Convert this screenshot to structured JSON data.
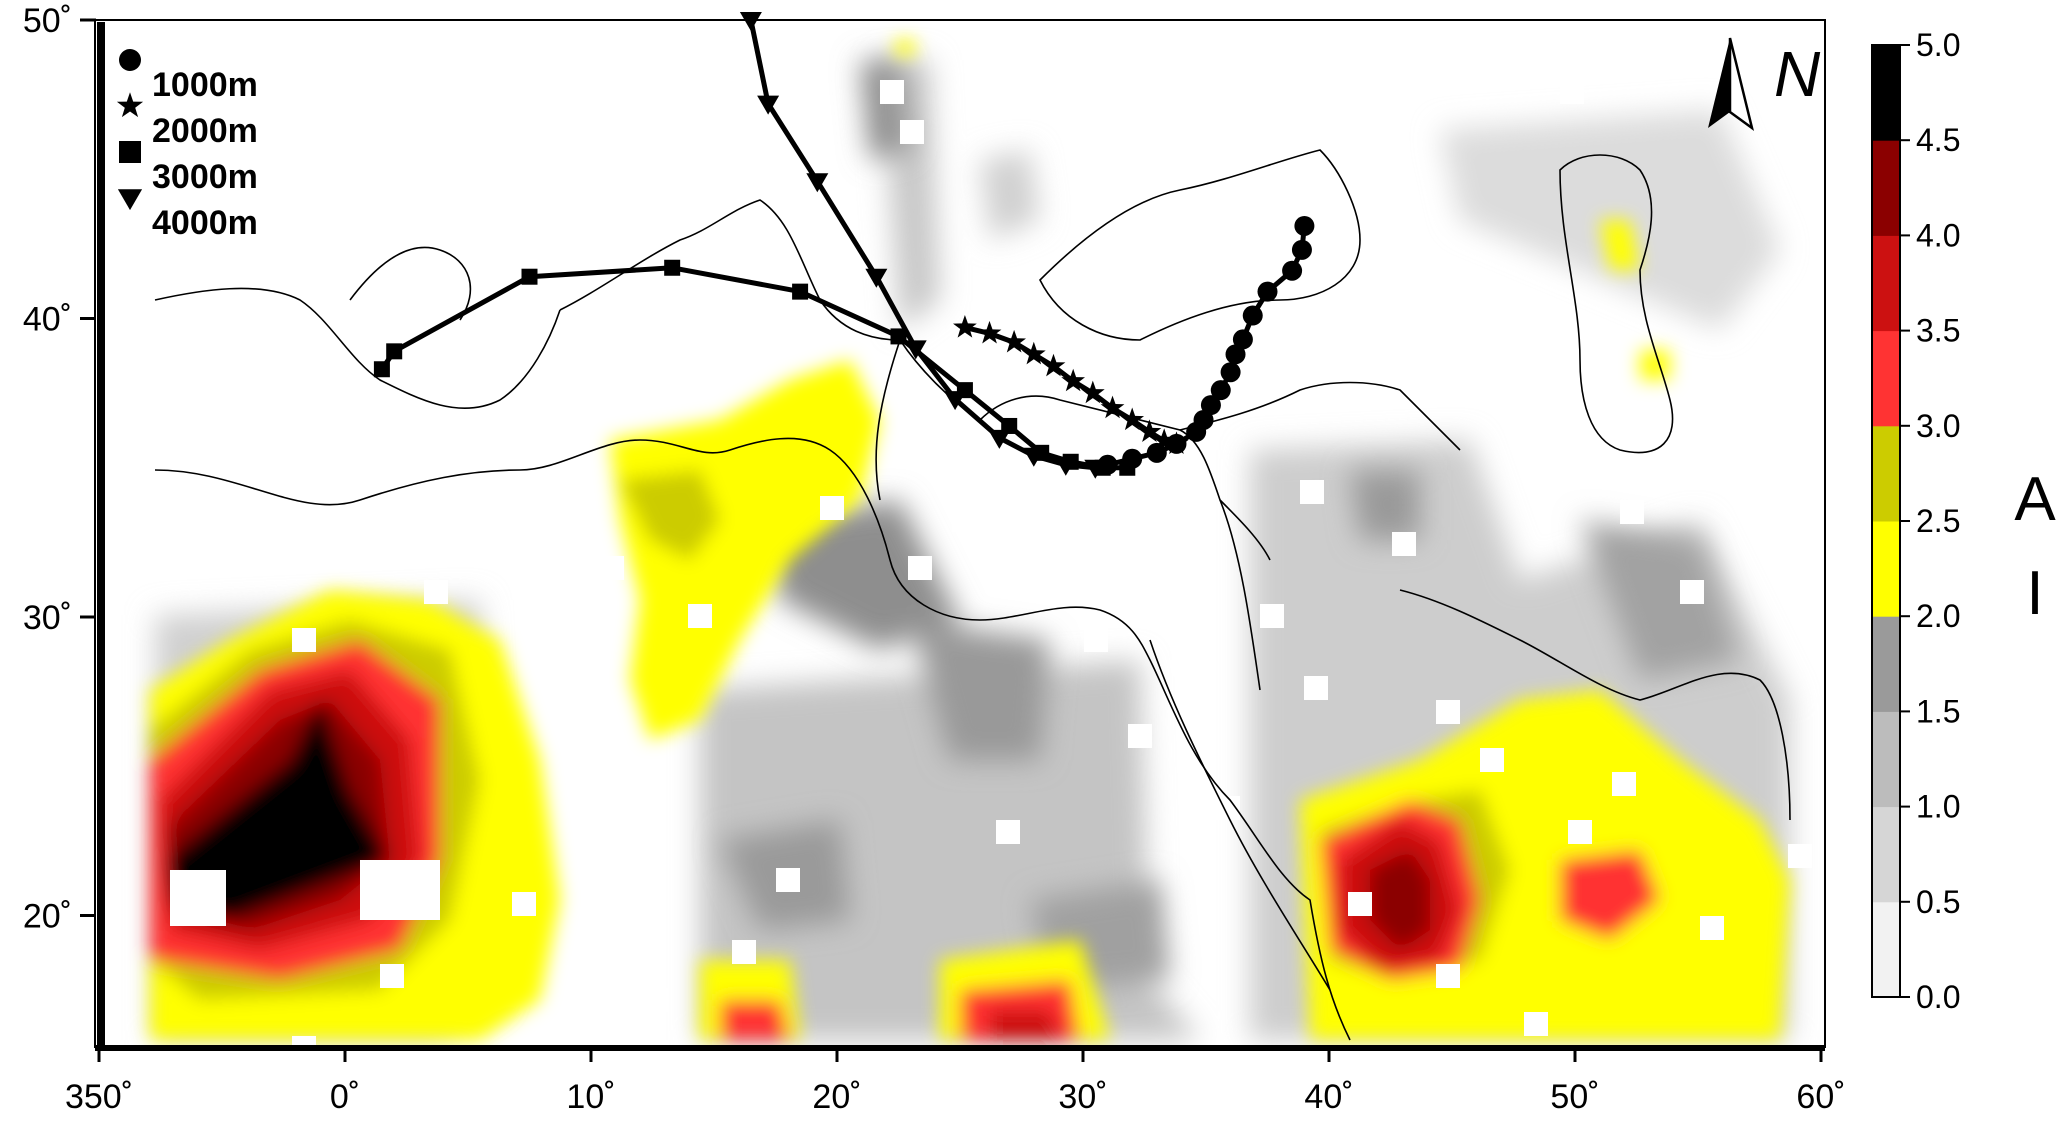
{
  "map": {
    "lon_ticks": [
      "350˚",
      "0˚",
      "10˚",
      "20˚",
      "30˚",
      "40˚",
      "50˚",
      "60˚"
    ],
    "lat_ticks": [
      "50˚",
      "40˚",
      "30˚",
      "20˚"
    ],
    "north_label": "N",
    "lon_range": [
      350,
      60
    ],
    "lat_range": [
      16.5,
      50
    ],
    "legend": [
      {
        "symbol": "circle",
        "label": "1000m"
      },
      {
        "symbol": "star",
        "label": "2000m"
      },
      {
        "symbol": "square",
        "label": "3000m"
      },
      {
        "symbol": "triangle-down",
        "label": "4000m"
      }
    ],
    "trajectories": [
      {
        "height": "1000m",
        "symbol": "circle",
        "points": [
          [
            39.0,
            43.1
          ],
          [
            38.9,
            42.3
          ],
          [
            38.5,
            41.6
          ],
          [
            37.5,
            40.9
          ],
          [
            36.9,
            40.1
          ],
          [
            36.5,
            39.3
          ],
          [
            36.2,
            38.8
          ],
          [
            36.0,
            38.2
          ],
          [
            35.6,
            37.6
          ],
          [
            35.2,
            37.1
          ],
          [
            34.9,
            36.6
          ],
          [
            34.6,
            36.2
          ],
          [
            33.8,
            35.8
          ],
          [
            33.0,
            35.5
          ],
          [
            32.0,
            35.3
          ],
          [
            31.0,
            35.1
          ]
        ]
      },
      {
        "height": "2000m",
        "symbol": "star",
        "points": [
          [
            25.2,
            39.7
          ],
          [
            26.2,
            39.5
          ],
          [
            27.2,
            39.2
          ],
          [
            28.0,
            38.8
          ],
          [
            28.8,
            38.4
          ],
          [
            29.6,
            37.9
          ],
          [
            30.4,
            37.5
          ],
          [
            31.2,
            37.0
          ],
          [
            32.0,
            36.6
          ],
          [
            32.7,
            36.2
          ],
          [
            33.3,
            35.9
          ],
          [
            33.8,
            35.8
          ]
        ]
      },
      {
        "height": "3000m",
        "symbol": "square",
        "points": [
          [
            1.5,
            38.3
          ],
          [
            2.0,
            38.9
          ],
          [
            7.5,
            41.4
          ],
          [
            13.3,
            41.7
          ],
          [
            18.5,
            40.9
          ],
          [
            22.5,
            39.4
          ],
          [
            25.2,
            37.6
          ],
          [
            27.0,
            36.4
          ],
          [
            28.3,
            35.5
          ],
          [
            29.5,
            35.2
          ],
          [
            30.8,
            35.0
          ],
          [
            31.8,
            35.0
          ]
        ]
      },
      {
        "height": "4000m",
        "symbol": "triangle-down",
        "points": [
          [
            16.5,
            50.0
          ],
          [
            17.2,
            47.2
          ],
          [
            19.2,
            44.6
          ],
          [
            21.6,
            41.4
          ],
          [
            23.2,
            39.0
          ],
          [
            24.8,
            37.3
          ],
          [
            26.6,
            36.0
          ],
          [
            28.0,
            35.4
          ],
          [
            29.3,
            35.1
          ],
          [
            30.5,
            35.0
          ]
        ]
      }
    ]
  },
  "colorbar": {
    "title_top": "A",
    "title_bottom": "I",
    "ticks": [
      "0.0",
      "0.5",
      "1.0",
      "1.5",
      "2.0",
      "2.5",
      "3.0",
      "3.5",
      "4.0",
      "4.5",
      "5.0"
    ],
    "colors": [
      "#f2f2f2",
      "#d6d6d6",
      "#bcbcbc",
      "#9a9a9a",
      "#ffff00",
      "#cccc00",
      "#ff3333",
      "#cc1111",
      "#8b0000",
      "#000000"
    ]
  }
}
